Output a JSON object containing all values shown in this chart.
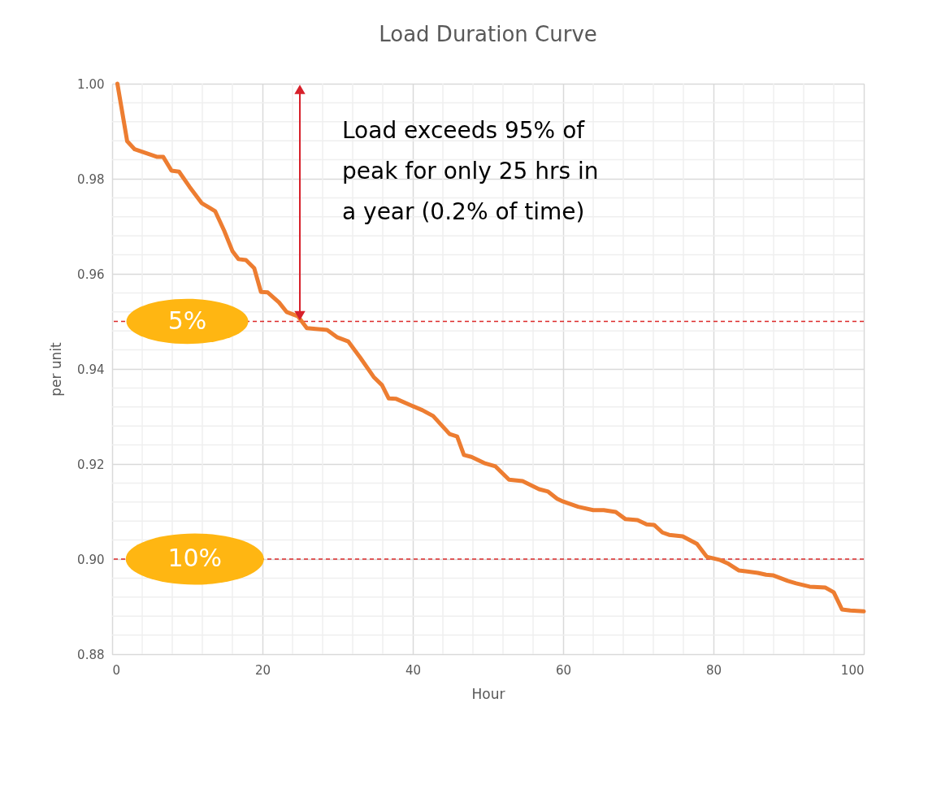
{
  "chart_data": {
    "type": "line",
    "title": "Load Duration Curve",
    "xlabel": "Hour",
    "ylabel": "per unit",
    "x": [
      0.7,
      2,
      3,
      6,
      6.8,
      7.9,
      8.9,
      10.3,
      11.9,
      13.7,
      14.9,
      16,
      16.8,
      17.8,
      18.9,
      19.8,
      20.7,
      22.2,
      23.2,
      24.7,
      25.9,
      28.6,
      29.9,
      31.4,
      33,
      34.8,
      35.9,
      36.8,
      37.8,
      39.8,
      41.3,
      42.7,
      44.9,
      45.9,
      46.8,
      47.8,
      49.5,
      51,
      52.8,
      54.6,
      56.8,
      58,
      59.2,
      60,
      62,
      64,
      65.4,
      67,
      68.3,
      69.9,
      71.1,
      72.1,
      73.2,
      74.1,
      75.9,
      77.8,
      79.1,
      80.9,
      82,
      83.4,
      84.5,
      85.9,
      87,
      87.9,
      89.9,
      91,
      92.8,
      94.9,
      96,
      97.1,
      98.2,
      100
    ],
    "series": [
      {
        "color": "#ed7d31",
        "values": [
          1.0,
          0.9879,
          0.9862,
          0.9846,
          0.9846,
          0.9817,
          0.9815,
          0.9783,
          0.9749,
          0.9732,
          0.9691,
          0.9648,
          0.9631,
          0.9629,
          0.9612,
          0.9562,
          0.9561,
          0.954,
          0.952,
          0.9511,
          0.9486,
          0.9482,
          0.9467,
          0.9458,
          0.9424,
          0.9383,
          0.9366,
          0.9338,
          0.9337,
          0.9323,
          0.9313,
          0.9301,
          0.9263,
          0.9258,
          0.9219,
          0.9215,
          0.9202,
          0.9195,
          0.9167,
          0.9164,
          0.9147,
          0.9142,
          0.9127,
          0.9121,
          0.911,
          0.9103,
          0.9103,
          0.9099,
          0.9084,
          0.9082,
          0.9073,
          0.9072,
          0.9056,
          0.9051,
          0.9048,
          0.9032,
          0.9005,
          0.8998,
          0.899,
          0.8976,
          0.8974,
          0.8971,
          0.8967,
          0.8966,
          0.8954,
          0.8949,
          0.8942,
          0.894,
          0.893,
          0.8894,
          0.8892,
          0.889
        ]
      }
    ],
    "xlim": [
      0,
      100
    ],
    "xticks": [
      0,
      20,
      40,
      60,
      80,
      100
    ],
    "ylim": [
      0.88,
      1.0
    ],
    "yticks": [
      0.88,
      {
        "value": 0.9,
        "label": "0.90"
      },
      0.92,
      0.94,
      0.96,
      0.98,
      {
        "value": 1.0,
        "label": "1.00"
      }
    ],
    "grid": true,
    "marker": "none",
    "line_style": "solid",
    "ref_lines": [
      {
        "axis": "y",
        "value": 0.95,
        "color": "#dc2a2a",
        "line_style": "dashed"
      },
      {
        "axis": "y",
        "value": 0.9,
        "color": "#dc2a2a",
        "line_style": "dashed"
      }
    ],
    "annotations": [
      "Load exceeds 95% of\npeak for only 25 hrs in\na year (0.2% of time)",
      {
        "text": "5%",
        "x": 10,
        "y": 0.95
      },
      {
        "text": "10%",
        "x": 11,
        "y": 0.9
      }
    ]
  }
}
